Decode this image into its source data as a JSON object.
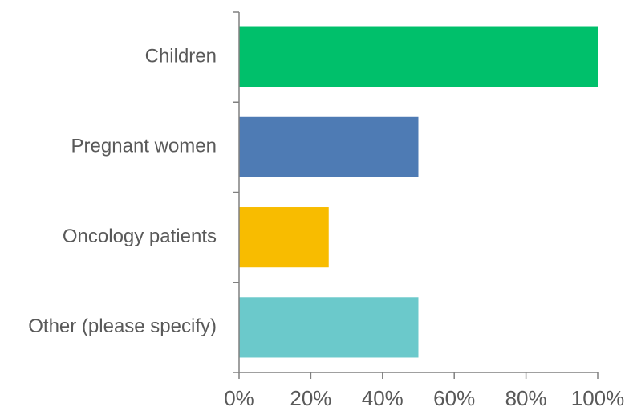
{
  "chart_data": {
    "type": "bar",
    "orientation": "horizontal",
    "categories": [
      "Children",
      "Pregnant women",
      "Oncology patients",
      "Other (please specify)"
    ],
    "values": [
      100,
      50,
      25,
      50
    ],
    "colors": [
      "#00C06B",
      "#4E7BB4",
      "#F8BC00",
      "#6BC9CB"
    ],
    "xlim": [
      0,
      100
    ],
    "x_ticks": [
      0,
      20,
      40,
      60,
      80,
      100
    ],
    "x_tick_labels": [
      "0%",
      "20%",
      "40%",
      "60%",
      "80%",
      "100%"
    ],
    "title": "",
    "xlabel": "",
    "ylabel": "",
    "grid": false,
    "legend": "none"
  }
}
